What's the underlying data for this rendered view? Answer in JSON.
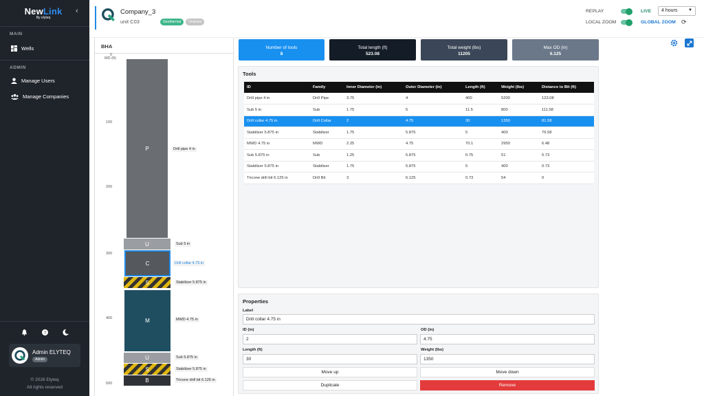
{
  "app": {
    "logo_text_new": "New",
    "logo_text_link": "Link",
    "logo_sub": "By elyteq"
  },
  "sidebar": {
    "main_label": "MAIN",
    "admin_label": "ADMIN",
    "items": [
      {
        "label": "Wells"
      },
      {
        "label": "Manage Users"
      },
      {
        "label": "Manage Companies"
      }
    ],
    "user": {
      "name": "Admin ELYTEQ",
      "role": "Admin"
    },
    "copyright": "© 2026 Elyteq",
    "rights": "All rights reserved"
  },
  "header": {
    "company": "Company_3",
    "unit": "unit C03",
    "tags": [
      {
        "label": "Geothermal",
        "color": "#3fb68b"
      },
      {
        "label": "Onshore",
        "color": "#c4c4c4"
      }
    ],
    "replay_label": "REPLAY",
    "live_label": "LIVE",
    "local_zoom_label": "LOCAL ZOOM",
    "global_zoom_label": "GLOBAL ZOOM",
    "range": "4 hours"
  },
  "bha": {
    "title": "BHA",
    "depth_unit": "MD (ft)",
    "depth_ticks": [
      "0",
      "100",
      "200",
      "300",
      "400",
      "500"
    ],
    "components": [
      {
        "letter": "P",
        "label": "Drill pipe 4 in"
      },
      {
        "letter": "U",
        "label": "Sub 5 in"
      },
      {
        "letter": "C",
        "label": "Drill collar 4.75 in"
      },
      {
        "letter": "S",
        "label": "Stabilizer 5.875 in"
      },
      {
        "letter": "M",
        "label": "MWD 4.75 in"
      },
      {
        "letter": "U",
        "label": "Sub 5.875 in"
      },
      {
        "letter": "S",
        "label": "Stabilizer 5.875 in"
      },
      {
        "letter": "B",
        "label": "Tricone drill bit 6.125 in"
      }
    ]
  },
  "summary": [
    {
      "label": "Number of tools",
      "value": "8",
      "color": "#1890f0"
    },
    {
      "label": "Total length (ft)",
      "value": "523.08",
      "color": "#141c27"
    },
    {
      "label": "Total weight (lbs)",
      "value": "11205",
      "color": "#3b4758"
    },
    {
      "label": "Max OD (in)",
      "value": "6.125",
      "color": "#6b7889"
    }
  ],
  "tools": {
    "title": "Tools",
    "headers": [
      "ID",
      "Family",
      "Inner Diameter (in)",
      "Outer Diameter (in)",
      "Length (ft)",
      "Weight (lbs)",
      "Distance to Bit (ft)"
    ],
    "rows": [
      [
        "Drill pipe 4 in",
        "Drill Pipe",
        "3.75",
        "4",
        "400",
        "5200",
        "123.08"
      ],
      [
        "Sub 5 in",
        "Sub",
        "1.75",
        "5",
        "11.5",
        "800",
        "111.58"
      ],
      [
        "Drill collar 4.75 in",
        "Drill Collar",
        "2",
        "4.75",
        "30",
        "1350",
        "81.58"
      ],
      [
        "Stabilizer 5.875 in",
        "Stabilizer",
        "1.75",
        "5.875",
        "5",
        "400",
        "76.58"
      ],
      [
        "MWD 4.75 in",
        "MWD",
        "2.25",
        "4.75",
        "70.1",
        "2950",
        "6.48"
      ],
      [
        "Sub 5.875 in",
        "Sub",
        "1.25",
        "5.875",
        "0.75",
        "51",
        "5.73"
      ],
      [
        "Stabilizer 5.875 in",
        "Stabilizer",
        "1.75",
        "5.875",
        "5",
        "400",
        "0.73"
      ],
      [
        "Tricone drill bit 6.125 in",
        "Drill Bit",
        "3",
        "6.125",
        "0.73",
        "54",
        "0"
      ]
    ]
  },
  "properties": {
    "title": "Properties",
    "label_label": "Label",
    "label_value": "Drill collar 4.75 in",
    "id_label": "ID (in)",
    "id_value": "2",
    "od_label": "OD (in)",
    "od_value": "4.75",
    "length_label": "Length (ft)",
    "length_value": "30",
    "weight_label": "Weight (lbs)",
    "weight_value": "1350",
    "move_up": "Move up",
    "move_down": "Move down",
    "duplicate": "Duplicate",
    "remove": "Remove"
  }
}
